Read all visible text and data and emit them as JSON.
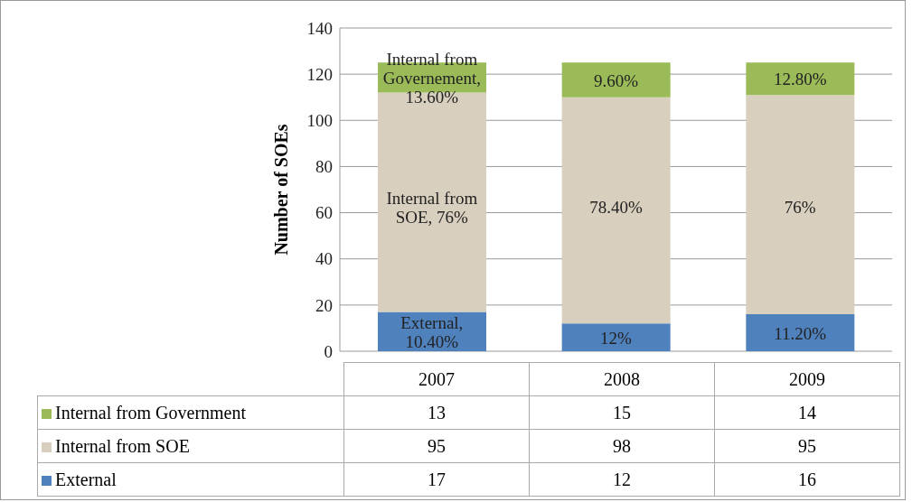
{
  "chart_data": {
    "type": "bar",
    "stacked": true,
    "ylabel": "Number of SOEs",
    "categories": [
      "2007",
      "2008",
      "2009"
    ],
    "series": [
      {
        "name": "External",
        "color": "#4f81bd",
        "values": [
          17,
          12,
          16
        ]
      },
      {
        "name": "Internal from SOE",
        "color": "#d8cfbe",
        "values": [
          95,
          98,
          95
        ]
      },
      {
        "name": "Internal from Government",
        "color": "#9bbb59",
        "values": [
          13,
          15,
          14
        ]
      }
    ],
    "annotations": [
      {
        "text": "External, 10.40%",
        "x": "2007",
        "y": 17
      },
      {
        "text": "12%",
        "x": "2008",
        "y": 12
      },
      {
        "text": "11.20%",
        "x": "2009",
        "y": 16
      },
      "Internal from SOE, 76%",
      "78.40%",
      "76%",
      {
        "text": "Internal from Governement, 13.60%",
        "x": "2007",
        "y": 125
      },
      {
        "text": "9.60%",
        "x": "2008",
        "y": 125
      },
      {
        "text": "12.80%",
        "x": "2009",
        "y": 125
      }
    ],
    "ylim": [
      0,
      140
    ],
    "yticks": [
      0,
      20,
      40,
      60,
      80,
      100,
      120,
      140
    ],
    "grid": "y",
    "legend": "bottom",
    "data_labels": true
  }
}
